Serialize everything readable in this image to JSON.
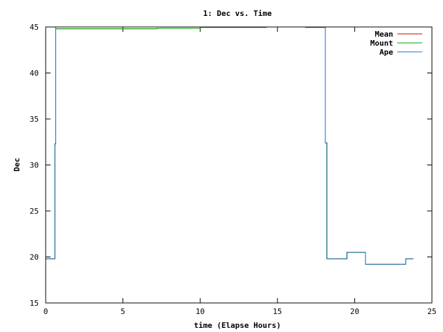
{
  "chart_data": {
    "type": "line",
    "title": "1: Dec vs. Time",
    "xlabel": "time (Elapse Hours)",
    "ylabel": "Dec",
    "xlim": [
      0,
      25
    ],
    "ylim": [
      15,
      45
    ],
    "x_ticks": [
      0,
      5,
      10,
      15,
      20,
      25
    ],
    "y_ticks": [
      15,
      20,
      25,
      30,
      35,
      40,
      45
    ],
    "grid": false,
    "legend_position": "top-right",
    "series": [
      {
        "name": "Mean",
        "color": "#cc0000",
        "segments": [
          {
            "x": [
              0.0,
              0.6,
              0.6,
              0.65,
              0.65,
              7.2,
              7.2,
              10.0,
              10.0,
              14.3
            ],
            "y": [
              19.8,
              19.8,
              32.3,
              32.3,
              44.8,
              44.8,
              44.85,
              44.85,
              44.95,
              44.95
            ]
          },
          {
            "x": [
              16.8,
              18.1,
              18.1,
              18.2,
              18.2,
              19.5,
              19.5,
              20.7,
              20.7,
              23.3,
              23.3,
              23.8
            ],
            "y": [
              44.95,
              44.95,
              32.4,
              32.4,
              19.8,
              19.8,
              20.5,
              20.5,
              19.2,
              19.2,
              19.8,
              19.8
            ]
          }
        ]
      },
      {
        "name": "Mount",
        "color": "#00a000",
        "segments": [
          {
            "x": [
              0.0,
              0.6,
              0.6,
              0.65,
              0.65,
              7.2,
              7.2,
              10.0,
              10.0,
              14.3
            ],
            "y": [
              19.8,
              19.8,
              32.3,
              32.3,
              44.8,
              44.8,
              44.85,
              44.85,
              44.95,
              44.95
            ]
          },
          {
            "x": [
              16.8,
              18.1,
              18.1,
              18.2,
              18.2,
              19.5,
              19.5,
              20.7,
              20.7,
              23.3,
              23.3,
              23.8
            ],
            "y": [
              44.95,
              44.95,
              32.4,
              32.4,
              19.8,
              19.8,
              20.5,
              20.5,
              19.2,
              19.2,
              19.8,
              19.8
            ]
          }
        ]
      },
      {
        "name": "Ape",
        "color": "#1a6ec8",
        "segments": [
          {
            "x": [
              0.0,
              0.6,
              0.6,
              0.65,
              0.65,
              18.1,
              18.1,
              18.2,
              18.2,
              19.5,
              19.5,
              20.7,
              20.7,
              23.3,
              23.3,
              23.8
            ],
            "y": [
              19.8,
              19.8,
              32.3,
              32.3,
              45.0,
              45.0,
              32.4,
              32.4,
              19.8,
              19.8,
              20.5,
              20.5,
              19.2,
              19.2,
              19.8,
              19.8
            ]
          }
        ]
      }
    ]
  }
}
